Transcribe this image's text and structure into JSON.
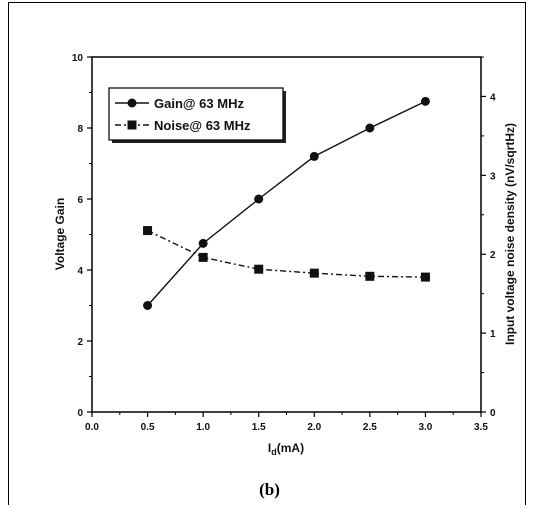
{
  "caption": "(b)",
  "chart_data": {
    "type": "line",
    "x": [
      0.5,
      1.0,
      1.5,
      2.0,
      2.5,
      3.0
    ],
    "xlim": [
      0.0,
      3.5
    ],
    "xticks": [
      "0.0",
      "0.5",
      "1.0",
      "1.5",
      "2.0",
      "2.5",
      "3.0",
      "3.5"
    ],
    "xlabel": {
      "main": "I",
      "sub": "d",
      "rest": "(mA)"
    },
    "ylabel_left": "Voltage Gain",
    "ylim_left": [
      0,
      10
    ],
    "yticks_left": [
      "0",
      "2",
      "4",
      "6",
      "8",
      "10"
    ],
    "ylabel_right": "Input voltage noise density (nV/sqrtHz)",
    "ylim_right": [
      0,
      4.5
    ],
    "yticks_right": [
      "0",
      "1",
      "2",
      "3",
      "4"
    ],
    "grid": false,
    "legend_position": "top-left",
    "series": [
      {
        "name": "Gain@ 63 MHz",
        "axis": "left",
        "marker": "circle",
        "line": "solid",
        "values": [
          3.0,
          4.75,
          6.0,
          7.2,
          8.0,
          8.75
        ]
      },
      {
        "name": "Noise@ 63 MHz",
        "axis": "right",
        "marker": "square",
        "line": "dash-dot",
        "values": [
          2.3,
          1.96,
          1.81,
          1.76,
          1.72,
          1.71
        ]
      }
    ]
  }
}
